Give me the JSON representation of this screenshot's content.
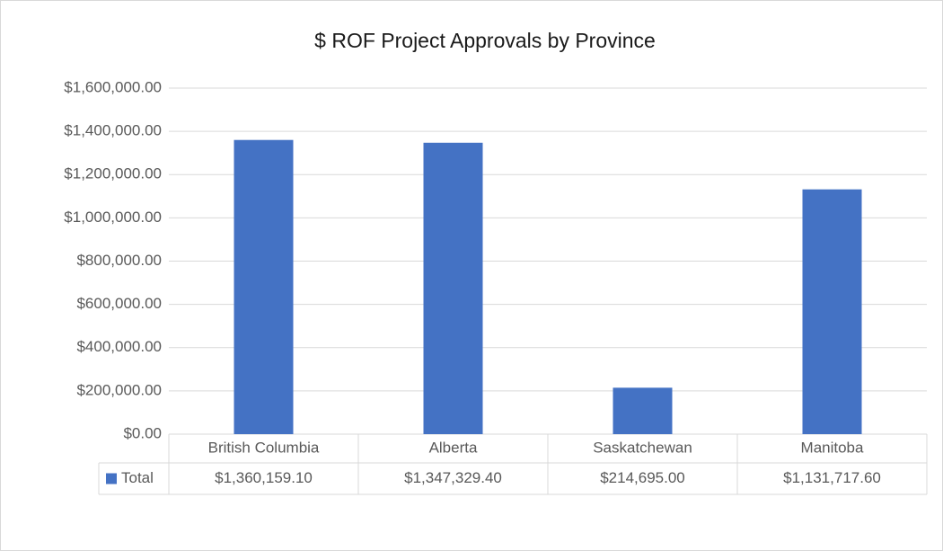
{
  "chart_data": {
    "type": "bar",
    "title": "$ ROF Project Approvals by Province",
    "categories": [
      "British Columbia",
      "Alberta",
      "Saskatchewan",
      "Manitoba"
    ],
    "series": [
      {
        "name": "Total",
        "color": "#4472c4",
        "values": [
          1360159.1,
          1347329.4,
          214695.0,
          1131717.6
        ],
        "value_labels": [
          "$1,360,159.10",
          "$1,347,329.40",
          "$214,695.00",
          "$1,131,717.60"
        ]
      }
    ],
    "ylim": [
      0,
      1600000
    ],
    "yticks": [
      {
        "value": 0,
        "label": "$0.00"
      },
      {
        "value": 200000,
        "label": "$200,000.00"
      },
      {
        "value": 400000,
        "label": "$400,000.00"
      },
      {
        "value": 600000,
        "label": "$600,000.00"
      },
      {
        "value": 800000,
        "label": "$800,000.00"
      },
      {
        "value": 1000000,
        "label": "$1,000,000.00"
      },
      {
        "value": 1200000,
        "label": "$1,200,000.00"
      },
      {
        "value": 1400000,
        "label": "$1,400,000.00"
      },
      {
        "value": 1600000,
        "label": "$1,600,000.00"
      }
    ],
    "grid": true
  }
}
